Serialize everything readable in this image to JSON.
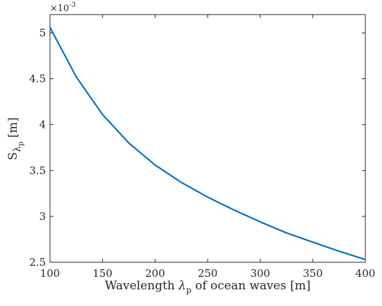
{
  "chart_data": {
    "type": "line",
    "title": "",
    "xlabel_parts": {
      "prefix": "Wavelength ",
      "symbol": "λ",
      "subscript": "p",
      "suffix": " of ocean waves [m]"
    },
    "ylabel_parts": {
      "prefix": "S",
      "symbol": "λ",
      "subscript": "p",
      "suffix": " [m]"
    },
    "xlim": [
      100,
      400
    ],
    "ylim": [
      2.5,
      5.2
    ],
    "y_multiplier": "×10",
    "y_multiplier_exp": "-3",
    "x_ticks": [
      100,
      150,
      200,
      250,
      300,
      350,
      400
    ],
    "x_tick_labels": [
      "100",
      "150",
      "200",
      "250",
      "300",
      "350",
      "400"
    ],
    "y_ticks": [
      2.5,
      3,
      3.5,
      4,
      4.5,
      5
    ],
    "y_tick_labels": [
      "2.5",
      "3",
      "3.5",
      "4",
      "4.5",
      "5"
    ],
    "grid": false,
    "series": [
      {
        "color": "#0072BD",
        "x": [
          100,
          125,
          150,
          175,
          200,
          225,
          250,
          275,
          300,
          325,
          350,
          375,
          400
        ],
        "y": [
          5.06,
          4.52,
          4.11,
          3.8,
          3.56,
          3.37,
          3.21,
          3.07,
          2.94,
          2.82,
          2.72,
          2.62,
          2.53
        ]
      }
    ]
  }
}
